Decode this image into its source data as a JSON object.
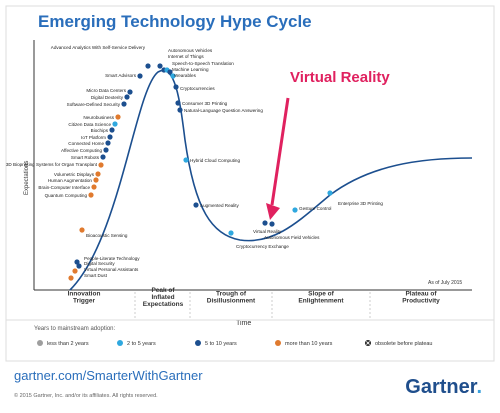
{
  "title": "Emerging Technology Hype Cycle",
  "highlight": {
    "text": "Virtual Reality",
    "color": "#e0215f"
  },
  "axes": {
    "y_label": "Expectations",
    "x_label": "Time"
  },
  "as_of": "As of July 2015",
  "phases": [
    "Innovation\nTrigger",
    "Peak of\nInflated\nExpectations",
    "Trough of\nDisillusionment",
    "Slope of\nEnlightenment",
    "Plateau of\nProductivity"
  ],
  "legend": {
    "title": "Years to mainstream adoption:",
    "items": [
      {
        "label": "less than 2 years",
        "color": "#9e9e9e",
        "icon": "circle"
      },
      {
        "label": "2 to 5 years",
        "color": "#2fa8df",
        "icon": "circle"
      },
      {
        "label": "5 to 10 years",
        "color": "#1c4f8f",
        "icon": "circle"
      },
      {
        "label": "more than 10 years",
        "color": "#e07a2e",
        "icon": "circle"
      },
      {
        "label": "obsolete before plateau",
        "color": "#222222",
        "icon": "x-circle"
      }
    ]
  },
  "chart_data": {
    "type": "scatter",
    "title": "Emerging Technology Hype Cycle",
    "xlabel": "Time",
    "ylabel": "Expectations",
    "points": [
      {
        "label": "Autonomous Vehicles",
        "color": "#1c4f8f"
      },
      {
        "label": "Internet of Things",
        "color": "#1c4f8f"
      },
      {
        "label": "Advanced Analytics With Self-Service Delivery",
        "color": "#1c4f8f"
      },
      {
        "label": "Speech-to-Speech Translation",
        "color": "#2fa8df"
      },
      {
        "label": "Machine Learning",
        "color": "#1c4f8f"
      },
      {
        "label": "Wearables",
        "color": "#2fa8df"
      },
      {
        "label": "Smart Advisors",
        "color": "#1c4f8f"
      },
      {
        "label": "Cryptocurrencies",
        "color": "#1c4f8f"
      },
      {
        "label": "Micro Data Centers",
        "color": "#1c4f8f"
      },
      {
        "label": "Digital Dexterity",
        "color": "#1c4f8f"
      },
      {
        "label": "Software-Defined Security",
        "color": "#1c4f8f"
      },
      {
        "label": "Consumer 3D Printing",
        "color": "#1c4f8f"
      },
      {
        "label": "Natural-Language Question Answering",
        "color": "#1c4f8f"
      },
      {
        "label": "Neurobusiness",
        "color": "#e07a2e"
      },
      {
        "label": "Citizen Data Science",
        "color": "#2fa8df"
      },
      {
        "label": "Biochips",
        "color": "#1c4f8f"
      },
      {
        "label": "IoT Platform",
        "color": "#1c4f8f"
      },
      {
        "label": "Connected Home",
        "color": "#1c4f8f"
      },
      {
        "label": "Affective Computing",
        "color": "#1c4f8f"
      },
      {
        "label": "Smart Robots",
        "color": "#1c4f8f"
      },
      {
        "label": "3D Bioprinting Systems for Organ Transplant",
        "color": "#e07a2e"
      },
      {
        "label": "Volumetric Displays",
        "color": "#e07a2e"
      },
      {
        "label": "Human Augmentation",
        "color": "#e07a2e"
      },
      {
        "label": "Brain-Computer Interface",
        "color": "#e07a2e"
      },
      {
        "label": "Quantum Computing",
        "color": "#e07a2e"
      },
      {
        "label": "Hybrid Cloud Computing",
        "color": "#2fa8df"
      },
      {
        "label": "Augmented Reality",
        "color": "#1c4f8f"
      },
      {
        "label": "Bioacoustic Sensing",
        "color": "#e07a2e"
      },
      {
        "label": "People-Literate Technology",
        "color": "#1c4f8f"
      },
      {
        "label": "Digital Security",
        "color": "#1c4f8f"
      },
      {
        "label": "Virtual Personal Assistants",
        "color": "#e07a2e"
      },
      {
        "label": "Smart Dust",
        "color": "#e07a2e"
      },
      {
        "label": "Cryptocurrency Exchange",
        "color": "#2fa8df"
      },
      {
        "label": "Virtual Reality",
        "color": "#1c4f8f"
      },
      {
        "label": "Autonomous Field Vehicles",
        "color": "#1c4f8f"
      },
      {
        "label": "Gesture Control",
        "color": "#2fa8df"
      },
      {
        "label": "Enterprise 3D Printing",
        "color": "#2fa8df"
      }
    ]
  },
  "footer": {
    "url": "gartner.com/SmarterWithGartner",
    "copyright": "© 2015 Gartner, Inc. and/or its affiliates. All rights reserved.",
    "brand": "Gartner",
    "brand_dot": "."
  }
}
